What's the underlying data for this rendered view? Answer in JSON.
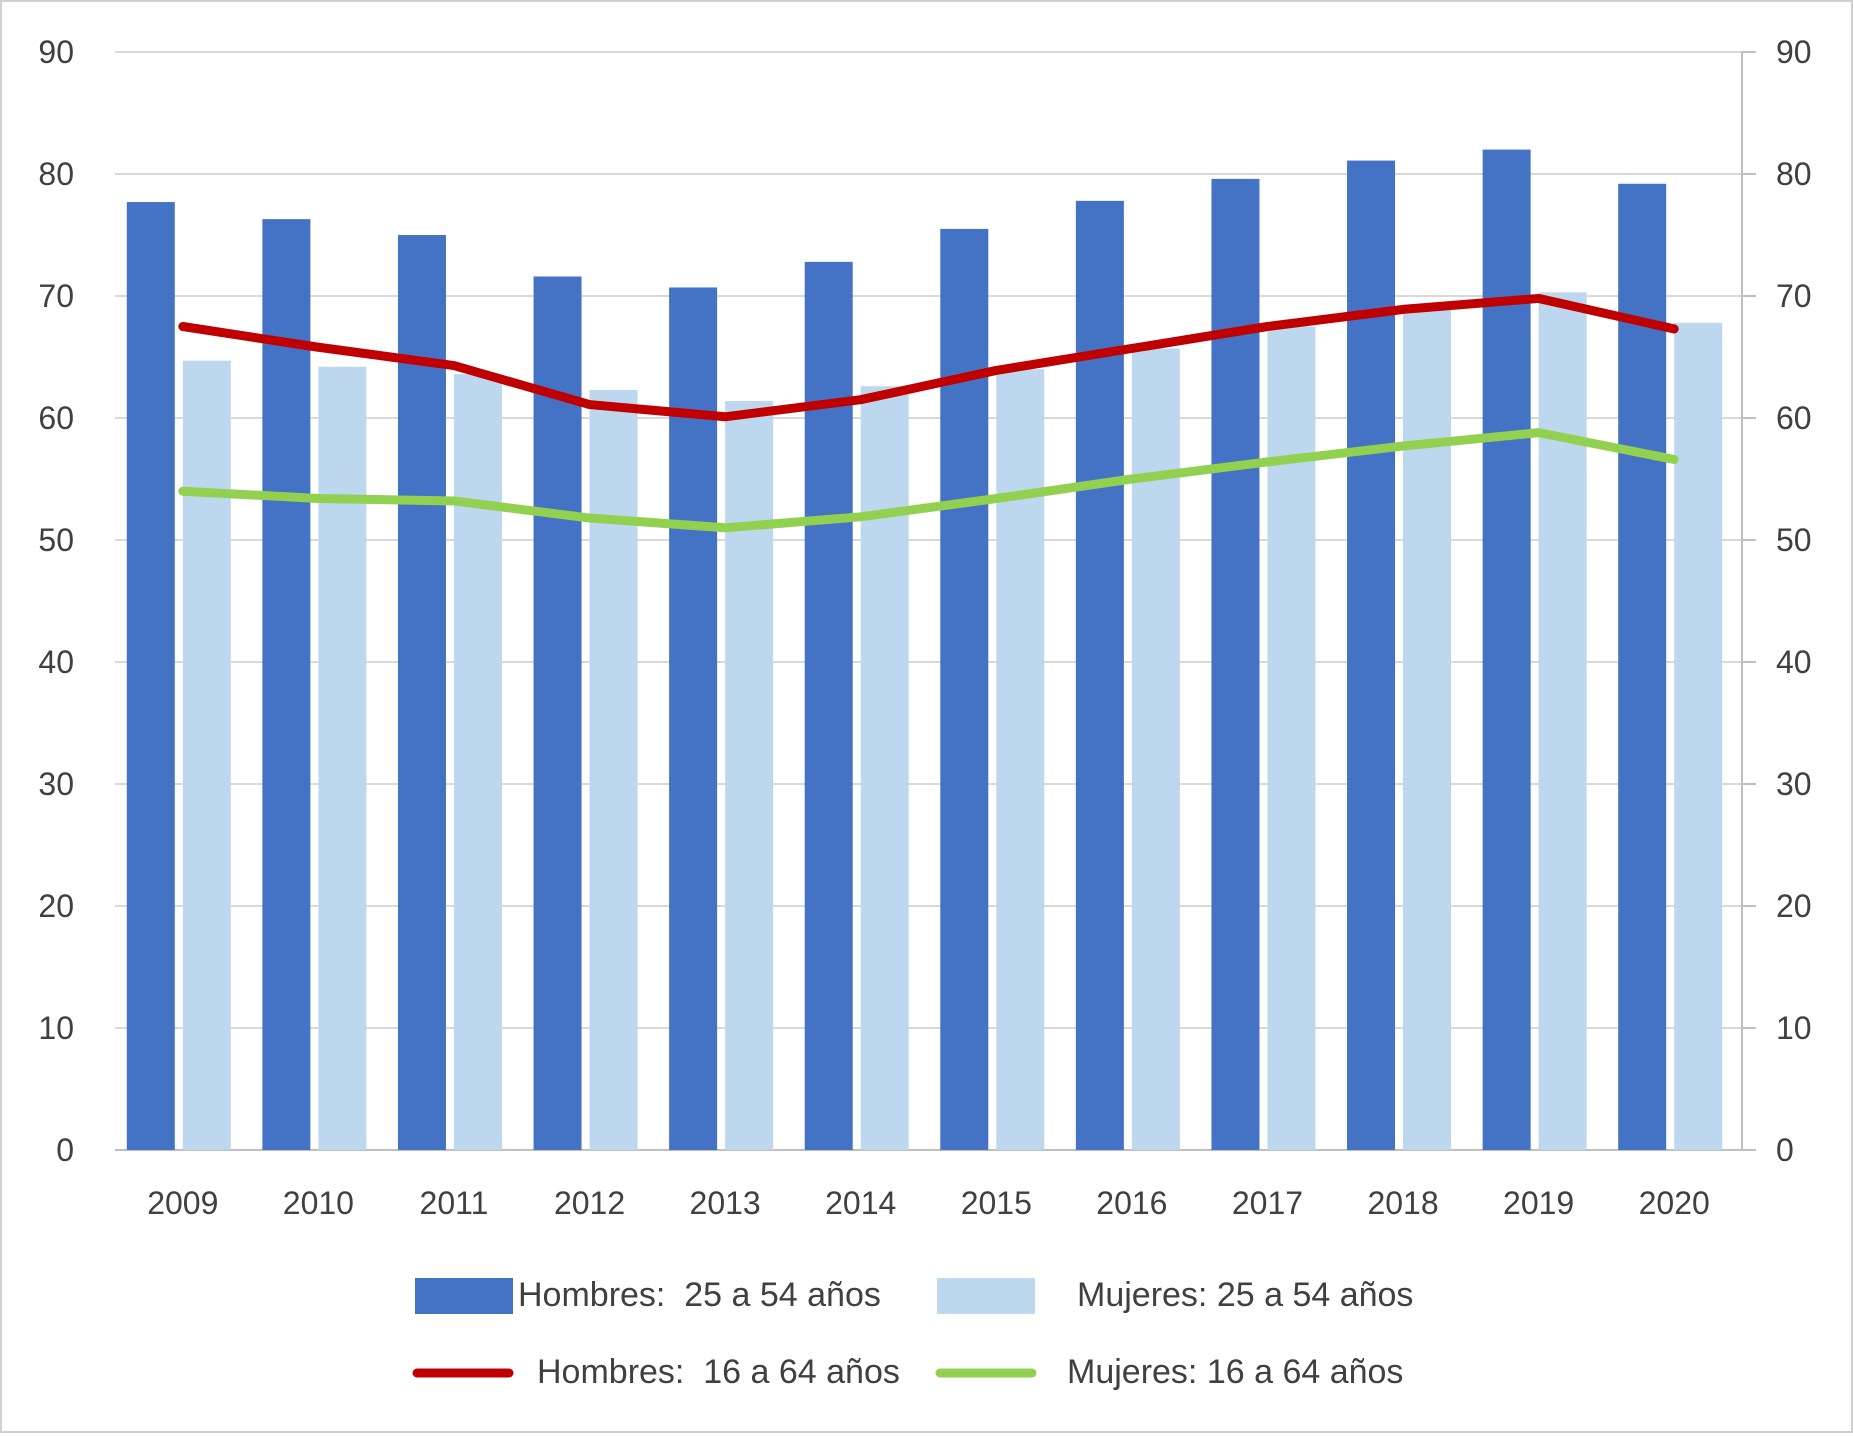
{
  "chart_data": {
    "type": "bar",
    "categories": [
      "2009",
      "2010",
      "2011",
      "2012",
      "2013",
      "2014",
      "2015",
      "2016",
      "2017",
      "2018",
      "2019",
      "2020"
    ],
    "ylim": [
      0,
      90
    ],
    "y_ticks": [
      "0",
      "10",
      "20",
      "30",
      "40",
      "50",
      "60",
      "70",
      "80",
      "90"
    ],
    "y2_ticks": [
      "0",
      "10",
      "20",
      "30",
      "40",
      "50",
      "60",
      "70",
      "80",
      "90"
    ],
    "grid": true,
    "legend_position": "bottom",
    "series": [
      {
        "name": "Hombres:  25 a 54 años",
        "kind": "bar",
        "color": "#4472C4",
        "values": [
          77.7,
          76.3,
          75.0,
          71.6,
          70.7,
          72.8,
          75.5,
          77.8,
          79.6,
          81.1,
          82.0,
          79.2
        ]
      },
      {
        "name": "Mujeres: 25 a 54 años",
        "kind": "bar",
        "color": "#BDD7EE",
        "values": [
          64.7,
          64.2,
          63.6,
          62.3,
          61.4,
          62.6,
          64.0,
          65.7,
          67.5,
          69.3,
          70.3,
          67.8
        ]
      },
      {
        "name": "Hombres:  16 a 64 años",
        "kind": "line",
        "color": "#C00000",
        "values": [
          67.5,
          65.8,
          64.3,
          61.1,
          60.1,
          61.5,
          63.9,
          65.7,
          67.5,
          68.9,
          69.8,
          67.3
        ]
      },
      {
        "name": "Mujeres: 16 a 64 años",
        "kind": "line",
        "color": "#92D050",
        "values": [
          54.0,
          53.4,
          53.2,
          51.8,
          51.0,
          51.9,
          53.4,
          55.0,
          56.4,
          57.7,
          58.8,
          56.6
        ]
      }
    ]
  }
}
